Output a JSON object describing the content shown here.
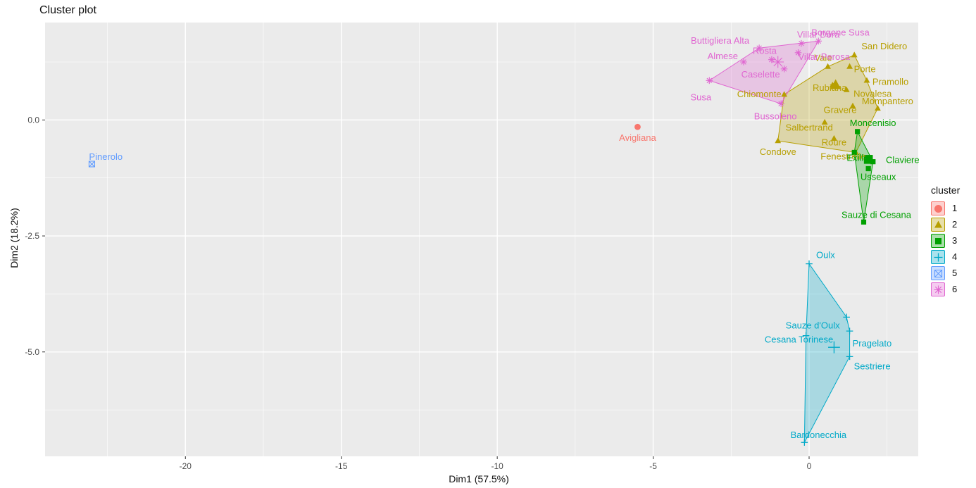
{
  "chart_data": {
    "type": "scatter",
    "title": "Cluster plot",
    "xlabel": "Dim1 (57.5%)",
    "ylabel": "Dim2 (18.2%)",
    "xlim": [
      -24.5,
      3.5
    ],
    "ylim": [
      -7.25,
      2.1
    ],
    "xticks": [
      -20,
      -15,
      -10,
      -5,
      0
    ],
    "xtick_labels": [
      "-20",
      "-15",
      "-10",
      "-5",
      "0"
    ],
    "yticks": [
      0,
      -2.5,
      -5
    ],
    "ytick_labels": [
      "0.0",
      "-2.5",
      "-5.0"
    ],
    "grid": true,
    "legend": {
      "title": "cluster",
      "position": "right",
      "entries": [
        "1",
        "2",
        "3",
        "4",
        "5",
        "6"
      ]
    },
    "clusters": [
      {
        "name": "1",
        "color": "#F8766D",
        "shape": "circle",
        "points": [
          {
            "label": "Avigliana",
            "x": -5.5,
            "y": -0.15
          }
        ],
        "center": {
          "x": -5.5,
          "y": -0.15
        }
      },
      {
        "name": "2",
        "color": "#B79F00",
        "shape": "triangle",
        "points": [
          {
            "label": "San Didero",
            "x": 1.45,
            "y": 1.4
          },
          {
            "label": "Vaie",
            "x": 0.6,
            "y": 1.15
          },
          {
            "label": "Porte",
            "x": 1.3,
            "y": 1.15
          },
          {
            "label": "Pramollo",
            "x": 1.85,
            "y": 0.85
          },
          {
            "label": "Rubiana",
            "x": 0.75,
            "y": 0.75
          },
          {
            "label": "Novalesa",
            "x": 1.2,
            "y": 0.65
          },
          {
            "label": "Chiomonte",
            "x": -0.8,
            "y": 0.55
          },
          {
            "label": "Gravere",
            "x": 1.4,
            "y": 0.3
          },
          {
            "label": "Salbertrand",
            "x": 0.5,
            "y": -0.05
          },
          {
            "label": "Condove",
            "x": -1.0,
            "y": -0.45
          },
          {
            "label": "Roure",
            "x": 0.8,
            "y": -0.4
          },
          {
            "label": "Fenestrelle",
            "x": 1.5,
            "y": -0.7
          },
          {
            "label": "Mompantero",
            "x": 2.2,
            "y": 0.25
          }
        ],
        "center": {
          "x": 0.85,
          "y": 0.75
        }
      },
      {
        "name": "3",
        "color": "#00A000",
        "shape": "square",
        "points": [
          {
            "label": "Moncenisio",
            "x": 1.55,
            "y": -0.25
          },
          {
            "label": "Exilles",
            "x": 1.45,
            "y": -0.7
          },
          {
            "label": "Claviere",
            "x": 2.05,
            "y": -0.9
          },
          {
            "label": "Usseaux",
            "x": 1.9,
            "y": -1.05
          },
          {
            "label": "Sauze di Cesana",
            "x": 1.75,
            "y": -2.2
          }
        ],
        "center": {
          "x": 1.9,
          "y": -0.85
        }
      },
      {
        "name": "4",
        "color": "#00A9C8",
        "shape": "plus",
        "points": [
          {
            "label": "Oulx",
            "x": 0.0,
            "y": -3.1
          },
          {
            "label": "Sauze d'Oulx",
            "x": 1.2,
            "y": -4.25
          },
          {
            "label": "Cesana Torinese",
            "x": -0.1,
            "y": -4.65
          },
          {
            "label": "Pragelato",
            "x": 1.3,
            "y": -4.55
          },
          {
            "label": "Sestriere",
            "x": 1.3,
            "y": -5.1
          },
          {
            "label": "Bardonecchia",
            "x": -0.15,
            "y": -6.95
          }
        ],
        "center": {
          "x": 0.8,
          "y": -4.9
        }
      },
      {
        "name": "5",
        "color": "#619CFF",
        "shape": "square-x",
        "points": [
          {
            "label": "Pinerolo",
            "x": -23.0,
            "y": -0.95
          }
        ],
        "center": {
          "x": -23.0,
          "y": -0.95
        }
      },
      {
        "name": "6",
        "color": "#E066D1",
        "shape": "asterisk",
        "points": [
          {
            "label": "Buttigliera Alta",
            "x": -1.6,
            "y": 1.55
          },
          {
            "label": "Villar Dora",
            "x": -0.25,
            "y": 1.65
          },
          {
            "label": "Borgone Susa",
            "x": 0.3,
            "y": 1.7
          },
          {
            "label": "Villar Perosa",
            "x": -0.35,
            "y": 1.45
          },
          {
            "label": "Almese",
            "x": -2.1,
            "y": 1.25
          },
          {
            "label": "Rosta",
            "x": -1.2,
            "y": 1.3
          },
          {
            "label": "Caselette",
            "x": -0.8,
            "y": 1.1
          },
          {
            "label": "Susa",
            "x": -3.2,
            "y": 0.85
          },
          {
            "label": "Bussoleno",
            "x": -0.9,
            "y": 0.35
          }
        ],
        "center": {
          "x": -1.0,
          "y": 1.25
        }
      }
    ]
  }
}
